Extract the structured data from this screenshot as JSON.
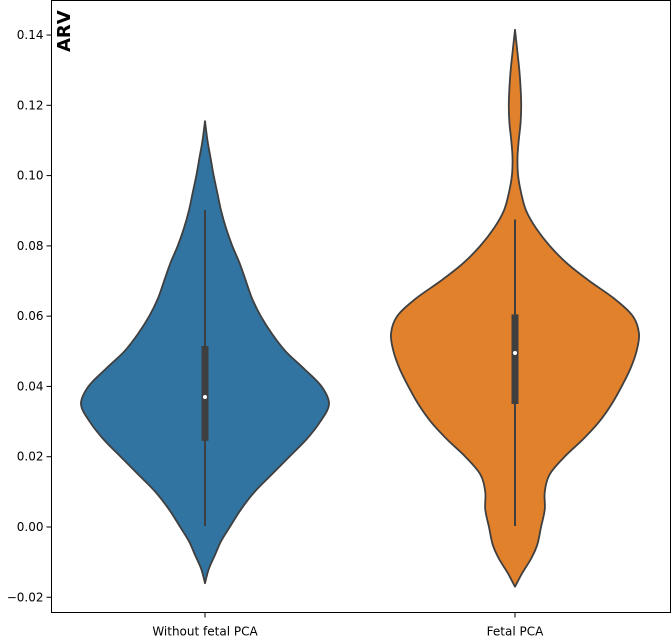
{
  "chart_data": {
    "type": "violin",
    "title": "ARV",
    "xlabel": "",
    "ylabel": "",
    "ylim": [
      -0.022,
      0.146
    ],
    "yticks": [
      -0.02,
      0.0,
      0.02,
      0.04,
      0.06,
      0.08,
      0.1,
      0.12,
      0.14
    ],
    "ytick_labels": [
      "−0.02",
      "0.00",
      "0.02",
      "0.04",
      "0.06",
      "0.08",
      "0.10",
      "0.12",
      "0.14"
    ],
    "categories": [
      "Without fetal PCA",
      "Fetal PCA"
    ],
    "series": [
      {
        "name": "Without fetal PCA",
        "color": "#3274a1",
        "whisker_low": 0.0003,
        "q1": 0.0245,
        "median": 0.037,
        "q3": 0.0515,
        "whisker_high": 0.0902,
        "density": [
          [
            -0.016,
            0.0
          ],
          [
            -0.012,
            0.03
          ],
          [
            -0.008,
            0.08
          ],
          [
            -0.004,
            0.13
          ],
          [
            0.0,
            0.2
          ],
          [
            0.005,
            0.29
          ],
          [
            0.01,
            0.4
          ],
          [
            0.015,
            0.54
          ],
          [
            0.02,
            0.68
          ],
          [
            0.025,
            0.82
          ],
          [
            0.03,
            0.93
          ],
          [
            0.035,
            1.0
          ],
          [
            0.04,
            0.94
          ],
          [
            0.045,
            0.8
          ],
          [
            0.05,
            0.65
          ],
          [
            0.055,
            0.54
          ],
          [
            0.06,
            0.45
          ],
          [
            0.065,
            0.38
          ],
          [
            0.07,
            0.33
          ],
          [
            0.075,
            0.28
          ],
          [
            0.08,
            0.22
          ],
          [
            0.085,
            0.17
          ],
          [
            0.09,
            0.13
          ],
          [
            0.095,
            0.1
          ],
          [
            0.1,
            0.07
          ],
          [
            0.105,
            0.045
          ],
          [
            0.11,
            0.02
          ],
          [
            0.1155,
            0.0
          ]
        ]
      },
      {
        "name": "Fetal PCA",
        "color": "#e1812c",
        "whisker_low": 0.0003,
        "q1": 0.035,
        "median": 0.0495,
        "q3": 0.0605,
        "whisker_high": 0.0875,
        "density": [
          [
            -0.017,
            0.0
          ],
          [
            -0.013,
            0.06
          ],
          [
            -0.009,
            0.13
          ],
          [
            -0.005,
            0.18
          ],
          [
            0.0,
            0.21
          ],
          [
            0.005,
            0.24
          ],
          [
            0.01,
            0.24
          ],
          [
            0.015,
            0.28
          ],
          [
            0.02,
            0.4
          ],
          [
            0.025,
            0.55
          ],
          [
            0.03,
            0.68
          ],
          [
            0.035,
            0.78
          ],
          [
            0.04,
            0.86
          ],
          [
            0.045,
            0.93
          ],
          [
            0.05,
            0.98
          ],
          [
            0.055,
            1.0
          ],
          [
            0.06,
            0.95
          ],
          [
            0.065,
            0.8
          ],
          [
            0.07,
            0.6
          ],
          [
            0.075,
            0.42
          ],
          [
            0.08,
            0.28
          ],
          [
            0.085,
            0.17
          ],
          [
            0.09,
            0.09
          ],
          [
            0.095,
            0.05
          ],
          [
            0.1,
            0.025
          ],
          [
            0.105,
            0.02
          ],
          [
            0.11,
            0.03
          ],
          [
            0.115,
            0.045
          ],
          [
            0.12,
            0.05
          ],
          [
            0.125,
            0.045
          ],
          [
            0.13,
            0.035
          ],
          [
            0.135,
            0.02
          ],
          [
            0.1415,
            0.0
          ]
        ]
      }
    ]
  }
}
